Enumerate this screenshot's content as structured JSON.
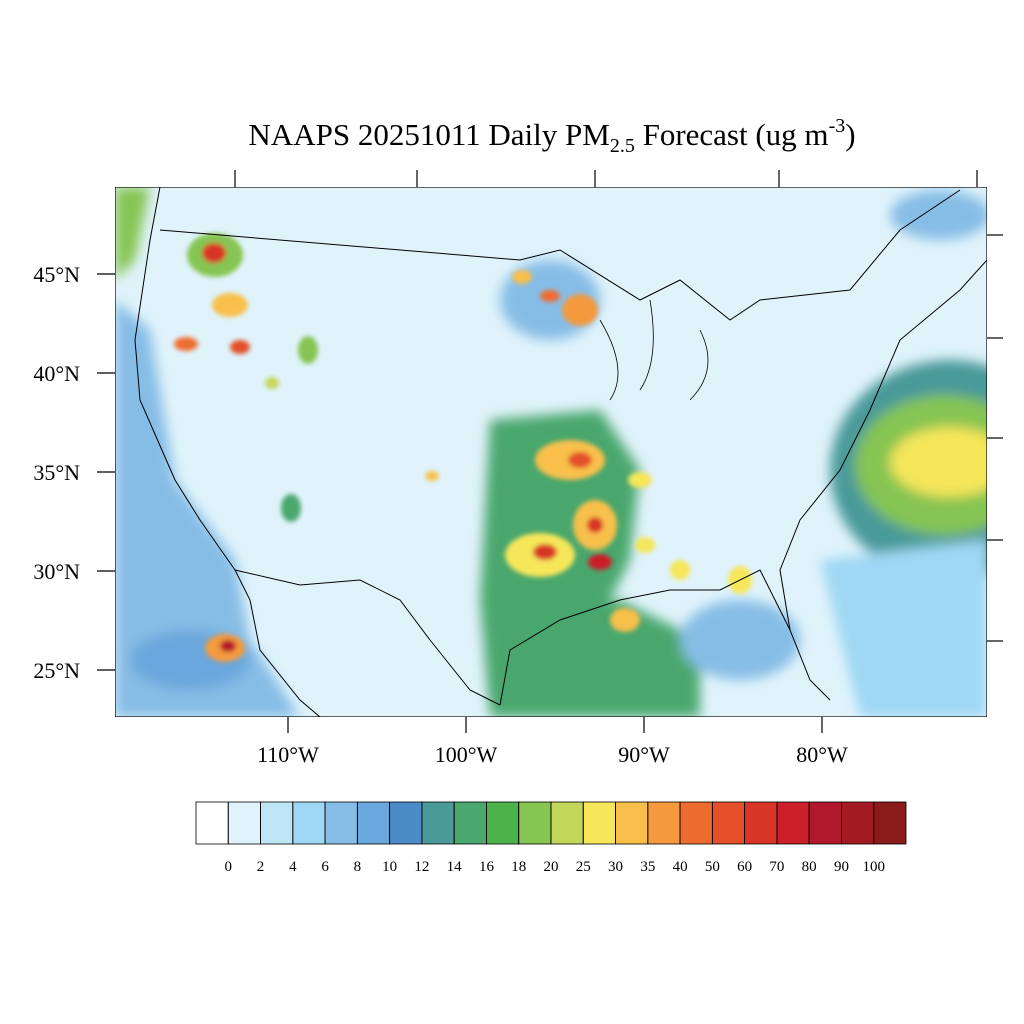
{
  "title": {
    "prefix": "NAAPS 20251011 Daily PM",
    "subscript": "2.5",
    "middle": " Forecast (ug m",
    "superscript": "-3",
    "suffix": ")"
  },
  "lat_labels": [
    {
      "value": 25,
      "label": "25°N"
    },
    {
      "value": 30,
      "label": "30°N"
    },
    {
      "value": 35,
      "label": "35°N"
    },
    {
      "value": 40,
      "label": "40°N"
    },
    {
      "value": 45,
      "label": "45°N"
    }
  ],
  "lon_labels": [
    {
      "value": -110,
      "label": "110°W"
    },
    {
      "value": -100,
      "label": "100°W"
    },
    {
      "value": -90,
      "label": "90°W"
    },
    {
      "value": -80,
      "label": "80°W"
    }
  ],
  "colorbar": {
    "levels": [
      0,
      2,
      4,
      6,
      8,
      10,
      12,
      14,
      16,
      18,
      20,
      25,
      30,
      35,
      40,
      50,
      60,
      70,
      80,
      90,
      100
    ],
    "colors": [
      "#ffffff",
      "#e0f3fb",
      "#bfe6f7",
      "#9fd8f4",
      "#86bde6",
      "#6aa7dc",
      "#4b8cc8",
      "#4a9a9a",
      "#4aa76d",
      "#4cb24a",
      "#86c552",
      "#c2d659",
      "#f6e65a",
      "#f8c04b",
      "#f59a3d",
      "#ef6c2f",
      "#e5502a",
      "#d93527",
      "#cc1f2a",
      "#b2182b",
      "#a31a22",
      "#8b1a1a"
    ]
  }
}
